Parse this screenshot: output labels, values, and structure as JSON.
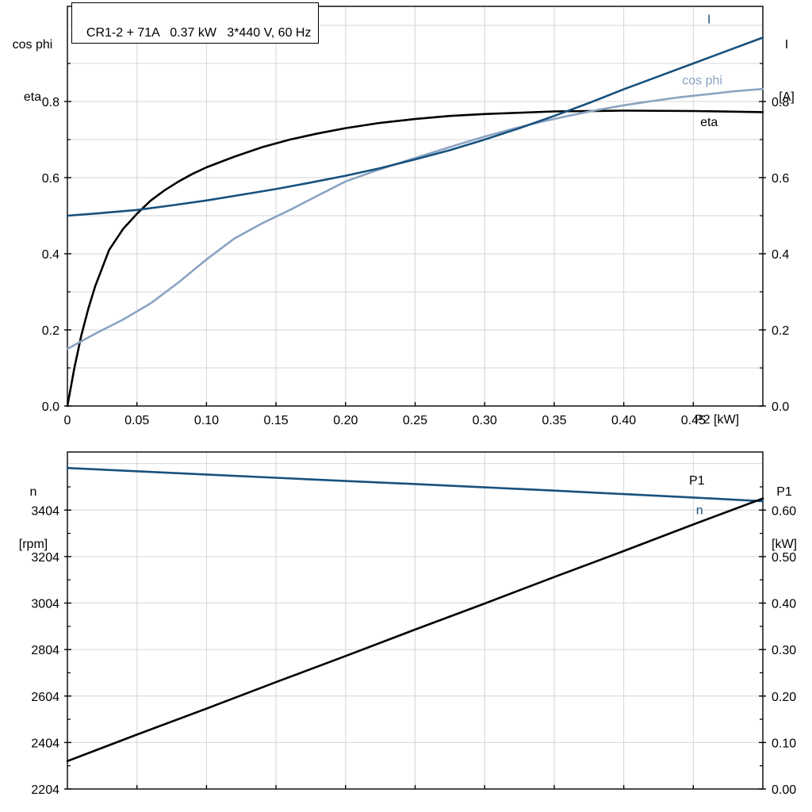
{
  "title_box": {
    "text": "CR1-2 + 71A   0.37 kW   3*440 V, 60 Hz"
  },
  "axis_titles": {
    "top_left_1": "cos phi",
    "top_left_2": "eta",
    "top_right_1": "I",
    "top_right_2": "[A]",
    "bottom_left_1": "n",
    "bottom_left_2": "[rpm]",
    "bottom_right_1": "P1",
    "bottom_right_2": "[kW]",
    "x_label": "P2 [kW]"
  },
  "colors": {
    "dark_blue": "#17517e",
    "light_blue": "#8aa4c2",
    "black": "#000000",
    "grid": "#d6d6d6"
  },
  "chart_data": [
    {
      "id": "top",
      "type": "line",
      "title": "CR1-2 + 71A   0.37 kW   3*440 V, 60 Hz",
      "xlabel": "P2 [kW]",
      "ylabel_left": "cos phi, eta",
      "ylabel_right": "I [A]",
      "xlim": [
        0,
        0.5
      ],
      "ylim_left": [
        0,
        1.05
      ],
      "ylim_right": [
        0,
        1.05
      ],
      "grid": true,
      "legend_position": "inline-labels",
      "x_ticks": [
        {
          "v": 0,
          "label": "0"
        },
        {
          "v": 0.05,
          "label": "0.05"
        },
        {
          "v": 0.1,
          "label": "0.10"
        },
        {
          "v": 0.15,
          "label": "0.15"
        },
        {
          "v": 0.2,
          "label": "0.20"
        },
        {
          "v": 0.25,
          "label": "0.25"
        },
        {
          "v": 0.3,
          "label": "0.30"
        },
        {
          "v": 0.35,
          "label": "0.35"
        },
        {
          "v": 0.4,
          "label": "0.40"
        },
        {
          "v": 0.45,
          "label": "0.45"
        }
      ],
      "y_ticks_left": [
        {
          "v": 0.0,
          "label": "0.0"
        },
        {
          "v": 0.2,
          "label": "0.2"
        },
        {
          "v": 0.4,
          "label": "0.4"
        },
        {
          "v": 0.6,
          "label": "0.6"
        },
        {
          "v": 0.8,
          "label": "0.8"
        }
      ],
      "y_ticks_right": [
        {
          "v": 0.0,
          "label": "0.0"
        },
        {
          "v": 0.2,
          "label": "0.2"
        },
        {
          "v": 0.4,
          "label": "0.4"
        },
        {
          "v": 0.6,
          "label": "0.6"
        },
        {
          "v": 0.8,
          "label": "0.8"
        }
      ],
      "y_minor_left": [
        0.1,
        0.3,
        0.5,
        0.7,
        0.9
      ],
      "y_minor_right": [
        0.1,
        0.3,
        0.5,
        0.7,
        0.9
      ],
      "x_grid": [
        0.05,
        0.1,
        0.15,
        0.2,
        0.25,
        0.3,
        0.35,
        0.4,
        0.45
      ],
      "y_grid": [
        0.1,
        0.2,
        0.3,
        0.4,
        0.5,
        0.6,
        0.7,
        0.8,
        0.9,
        1.0
      ],
      "series": [
        {
          "name": "eta",
          "axis": "left",
          "color": "#000000",
          "x": [
            0,
            0.005,
            0.01,
            0.015,
            0.02,
            0.03,
            0.04,
            0.05,
            0.06,
            0.07,
            0.08,
            0.09,
            0.1,
            0.12,
            0.14,
            0.16,
            0.18,
            0.2,
            0.225,
            0.25,
            0.275,
            0.3,
            0.35,
            0.4,
            0.45,
            0.5
          ],
          "y": [
            0,
            0.1,
            0.185,
            0.255,
            0.315,
            0.41,
            0.465,
            0.505,
            0.54,
            0.567,
            0.59,
            0.61,
            0.627,
            0.655,
            0.68,
            0.7,
            0.716,
            0.73,
            0.744,
            0.754,
            0.762,
            0.767,
            0.774,
            0.776,
            0.775,
            0.772
          ],
          "label": {
            "text": "eta",
            "x": 0.455,
            "y": 0.735
          }
        },
        {
          "name": "cos phi",
          "axis": "left",
          "color": "#8aa4c2",
          "x": [
            0,
            0.02,
            0.04,
            0.06,
            0.08,
            0.1,
            0.12,
            0.14,
            0.16,
            0.18,
            0.2,
            0.22,
            0.24,
            0.26,
            0.28,
            0.3,
            0.32,
            0.34,
            0.36,
            0.38,
            0.4,
            0.42,
            0.44,
            0.46,
            0.48,
            0.5
          ],
          "y": [
            0.15,
            0.19,
            0.227,
            0.27,
            0.325,
            0.385,
            0.44,
            0.48,
            0.515,
            0.553,
            0.59,
            0.616,
            0.64,
            0.663,
            0.686,
            0.708,
            0.728,
            0.746,
            0.762,
            0.777,
            0.79,
            0.801,
            0.811,
            0.819,
            0.827,
            0.833
          ],
          "label": {
            "text": "cos phi",
            "x": 0.442,
            "y": 0.845
          }
        },
        {
          "name": "I",
          "axis": "left",
          "color": "#17517e",
          "x": [
            0,
            0.025,
            0.05,
            0.075,
            0.1,
            0.125,
            0.15,
            0.175,
            0.2,
            0.225,
            0.25,
            0.275,
            0.3,
            0.325,
            0.35,
            0.375,
            0.4,
            0.425,
            0.45,
            0.475,
            0.5
          ],
          "y": [
            0.5,
            0.507,
            0.515,
            0.527,
            0.54,
            0.555,
            0.57,
            0.587,
            0.605,
            0.625,
            0.648,
            0.672,
            0.7,
            0.73,
            0.762,
            0.796,
            0.832,
            0.866,
            0.9,
            0.934,
            0.968
          ],
          "label": {
            "text": "I",
            "x": 0.46,
            "y": 1.005
          }
        }
      ]
    },
    {
      "id": "bottom",
      "type": "line",
      "title": "",
      "xlabel": "",
      "ylabel_left": "n [rpm]",
      "ylabel_right": "P1 [kW]",
      "xlim": [
        0,
        0.5
      ],
      "ylim_left": [
        2204,
        3654
      ],
      "ylim_right": [
        0,
        0.725
      ],
      "grid": true,
      "legend_position": "inline-labels",
      "x_ticks": [],
      "x_tick_marks": [
        0.05,
        0.1,
        0.15,
        0.2,
        0.25,
        0.3,
        0.35,
        0.4,
        0.45
      ],
      "y_ticks_left": [
        {
          "v": 2204,
          "label": "2204"
        },
        {
          "v": 2404,
          "label": "2404"
        },
        {
          "v": 2604,
          "label": "2604"
        },
        {
          "v": 2804,
          "label": "2804"
        },
        {
          "v": 3004,
          "label": "3004"
        },
        {
          "v": 3204,
          "label": "3204"
        },
        {
          "v": 3404,
          "label": "3404"
        }
      ],
      "y_ticks_right": [
        {
          "v": 0.0,
          "label": "0.00"
        },
        {
          "v": 0.1,
          "label": "0.10"
        },
        {
          "v": 0.2,
          "label": "0.20"
        },
        {
          "v": 0.3,
          "label": "0.30"
        },
        {
          "v": 0.4,
          "label": "0.40"
        },
        {
          "v": 0.5,
          "label": "0.50"
        },
        {
          "v": 0.6,
          "label": "0.60"
        }
      ],
      "y_minor_left": [
        2304,
        2504,
        2704,
        2904,
        3104,
        3304,
        3504
      ],
      "y_minor_right": [
        0.05,
        0.15,
        0.25,
        0.35,
        0.45,
        0.55,
        0.65
      ],
      "x_grid": [
        0.05,
        0.1,
        0.15,
        0.2,
        0.25,
        0.3,
        0.35,
        0.4,
        0.45
      ],
      "y_grid": [
        2404,
        2604,
        2804,
        3004,
        3204,
        3404,
        3604
      ],
      "series": [
        {
          "name": "n",
          "axis": "left",
          "color": "#17517e",
          "x": [
            0,
            0.05,
            0.1,
            0.15,
            0.2,
            0.25,
            0.3,
            0.35,
            0.4,
            0.45,
            0.5
          ],
          "y": [
            3585,
            3571,
            3557,
            3543,
            3529,
            3516,
            3502,
            3488,
            3473,
            3458,
            3442
          ],
          "label": {
            "text": "n",
            "x": 0.452,
            "y": 3387
          }
        },
        {
          "name": "P1",
          "axis": "right",
          "color": "#000000",
          "x": [
            0,
            0.05,
            0.1,
            0.15,
            0.2,
            0.25,
            0.3,
            0.35,
            0.4,
            0.45,
            0.5
          ],
          "y": [
            0.06,
            0.117,
            0.173,
            0.23,
            0.286,
            0.343,
            0.399,
            0.456,
            0.512,
            0.569,
            0.625
          ],
          "label": {
            "text": "P1",
            "x": 0.447,
            "y": 0.655
          }
        }
      ]
    }
  ]
}
